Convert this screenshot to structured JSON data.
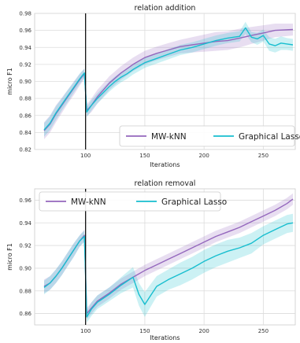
{
  "chart_data": [
    {
      "type": "line",
      "title": "relation addition",
      "xlabel": "Iterations",
      "ylabel": "micro F1",
      "xlim": [
        57,
        277
      ],
      "ylim": [
        0.82,
        0.98
      ],
      "xticks": [
        100,
        150,
        200,
        250
      ],
      "xtick_labels": [
        "100",
        "150",
        "200",
        "250"
      ],
      "yticks": [
        0.82,
        0.84,
        0.86,
        0.88,
        0.9,
        0.92,
        0.94,
        0.96,
        0.98
      ],
      "ytick_labels": [
        "0.82",
        "0.84",
        "0.86",
        "0.88",
        "0.90",
        "0.92",
        "0.94",
        "0.96",
        "0.98"
      ],
      "grid": true,
      "legend": "lower-right",
      "vline_x": 100,
      "series": [
        {
          "name": "MW-kNN",
          "color": "#9467bd",
          "x": [
            65,
            70,
            75,
            80,
            85,
            90,
            95,
            99,
            101,
            105,
            110,
            115,
            120,
            125,
            130,
            135,
            140,
            145,
            150,
            160,
            170,
            180,
            190,
            200,
            210,
            220,
            230,
            240,
            250,
            260,
            275
          ],
          "y": [
            0.842,
            0.85,
            0.862,
            0.872,
            0.882,
            0.892,
            0.902,
            0.909,
            0.866,
            0.872,
            0.882,
            0.89,
            0.898,
            0.904,
            0.91,
            0.915,
            0.92,
            0.924,
            0.928,
            0.933,
            0.937,
            0.941,
            0.943,
            0.945,
            0.947,
            0.948,
            0.951,
            0.954,
            0.957,
            0.96,
            0.961
          ],
          "band": [
            0.01,
            0.01,
            0.01,
            0.009,
            0.008,
            0.008,
            0.007,
            0.006,
            0.007,
            0.008,
            0.008,
            0.008,
            0.008,
            0.008,
            0.008,
            0.008,
            0.008,
            0.008,
            0.008,
            0.008,
            0.008,
            0.008,
            0.009,
            0.01,
            0.011,
            0.011,
            0.011,
            0.01,
            0.009,
            0.008,
            0.007
          ]
        },
        {
          "name": "Graphical Lasso",
          "color": "#17becf",
          "x": [
            65,
            70,
            75,
            80,
            85,
            90,
            95,
            99,
            101,
            105,
            110,
            115,
            120,
            125,
            130,
            135,
            140,
            145,
            150,
            160,
            170,
            180,
            190,
            200,
            210,
            220,
            230,
            235,
            240,
            245,
            250,
            255,
            260,
            265,
            270,
            275
          ],
          "y": [
            0.843,
            0.851,
            0.863,
            0.873,
            0.883,
            0.893,
            0.903,
            0.91,
            0.864,
            0.872,
            0.88,
            0.887,
            0.894,
            0.9,
            0.905,
            0.909,
            0.914,
            0.918,
            0.922,
            0.927,
            0.932,
            0.937,
            0.94,
            0.944,
            0.948,
            0.951,
            0.953,
            0.963,
            0.952,
            0.95,
            0.954,
            0.944,
            0.942,
            0.945,
            0.944,
            0.943
          ],
          "band": [
            0.008,
            0.008,
            0.008,
            0.007,
            0.007,
            0.006,
            0.006,
            0.005,
            0.006,
            0.006,
            0.006,
            0.006,
            0.006,
            0.006,
            0.006,
            0.006,
            0.006,
            0.006,
            0.006,
            0.006,
            0.006,
            0.006,
            0.006,
            0.006,
            0.006,
            0.006,
            0.006,
            0.007,
            0.006,
            0.007,
            0.007,
            0.008,
            0.008,
            0.008,
            0.007,
            0.007
          ]
        }
      ]
    },
    {
      "type": "line",
      "title": "relation removal",
      "xlabel": "Iterations",
      "ylabel": "micro F1",
      "xlim": [
        57,
        277
      ],
      "ylim": [
        0.85,
        0.97
      ],
      "xticks": [
        100,
        150,
        200,
        250
      ],
      "xtick_labels": [
        "100",
        "150",
        "200",
        "250"
      ],
      "yticks": [
        0.86,
        0.88,
        0.9,
        0.92,
        0.94,
        0.96
      ],
      "ytick_labels": [
        "0.86",
        "0.88",
        "0.90",
        "0.92",
        "0.94",
        "0.96"
      ],
      "grid": true,
      "legend": "top",
      "vline_x": 100,
      "series": [
        {
          "name": "MW-kNN",
          "color": "#9467bd",
          "x": [
            65,
            70,
            75,
            80,
            85,
            90,
            95,
            99,
            101,
            105,
            110,
            120,
            130,
            140,
            150,
            160,
            170,
            180,
            190,
            200,
            210,
            220,
            230,
            240,
            250,
            260,
            270,
            275
          ],
          "y": [
            0.884,
            0.887,
            0.893,
            0.9,
            0.908,
            0.916,
            0.924,
            0.929,
            0.86,
            0.865,
            0.871,
            0.878,
            0.886,
            0.892,
            0.898,
            0.903,
            0.908,
            0.913,
            0.918,
            0.923,
            0.928,
            0.932,
            0.936,
            0.941,
            0.946,
            0.951,
            0.957,
            0.961
          ],
          "band": [
            0.006,
            0.006,
            0.006,
            0.006,
            0.006,
            0.006,
            0.005,
            0.005,
            0.005,
            0.005,
            0.005,
            0.005,
            0.005,
            0.005,
            0.005,
            0.005,
            0.005,
            0.005,
            0.005,
            0.005,
            0.005,
            0.005,
            0.005,
            0.005,
            0.005,
            0.005,
            0.005,
            0.005
          ]
        },
        {
          "name": "Graphical Lasso",
          "color": "#17becf",
          "x": [
            65,
            70,
            75,
            80,
            85,
            90,
            95,
            99,
            101,
            105,
            110,
            120,
            130,
            140,
            145,
            150,
            155,
            160,
            170,
            180,
            190,
            200,
            210,
            220,
            230,
            240,
            250,
            260,
            270,
            275
          ],
          "y": [
            0.883,
            0.887,
            0.893,
            0.9,
            0.908,
            0.916,
            0.924,
            0.928,
            0.857,
            0.864,
            0.87,
            0.877,
            0.885,
            0.892,
            0.877,
            0.868,
            0.876,
            0.884,
            0.89,
            0.895,
            0.9,
            0.906,
            0.911,
            0.915,
            0.918,
            0.922,
            0.929,
            0.934,
            0.939,
            0.94
          ],
          "band": [
            0.006,
            0.006,
            0.006,
            0.006,
            0.006,
            0.006,
            0.005,
            0.005,
            0.005,
            0.006,
            0.006,
            0.006,
            0.007,
            0.009,
            0.01,
            0.011,
            0.01,
            0.009,
            0.009,
            0.01,
            0.01,
            0.01,
            0.01,
            0.01,
            0.009,
            0.009,
            0.008,
            0.008,
            0.008,
            0.008
          ]
        }
      ]
    }
  ]
}
